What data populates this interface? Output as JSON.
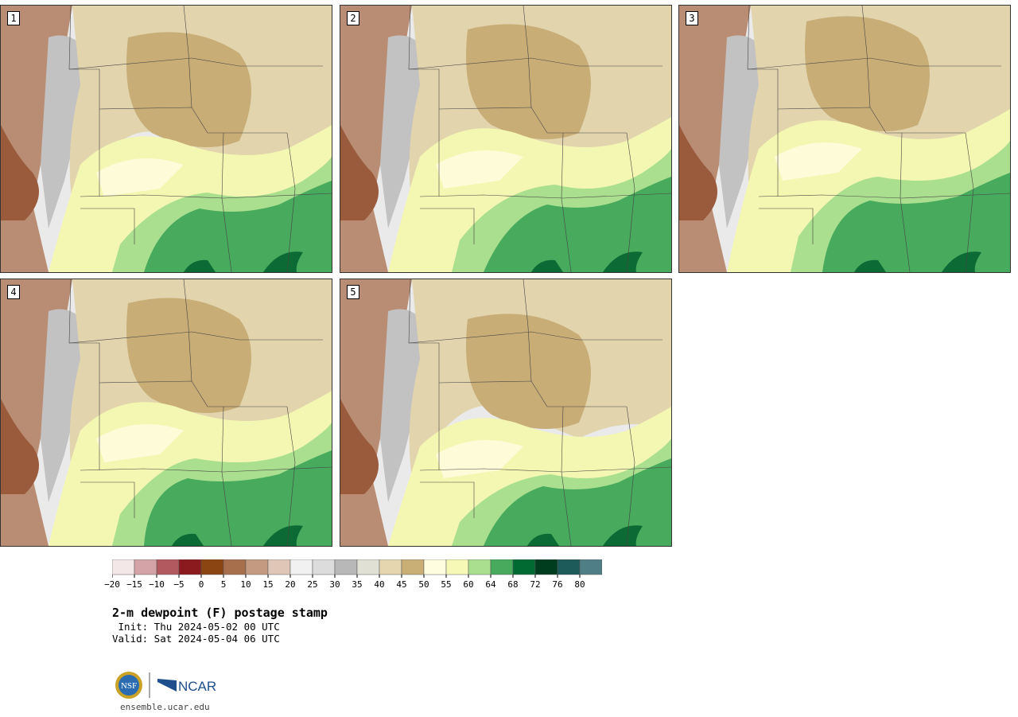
{
  "panels": [
    {
      "label": "1"
    },
    {
      "label": "2"
    },
    {
      "label": "3"
    },
    {
      "label": "4"
    },
    {
      "label": "5"
    }
  ],
  "colorbar": {
    "colors": [
      "#f3e7e8",
      "#d4a3a7",
      "#b2595f",
      "#8b1a1e",
      "#8a4513",
      "#a86f4c",
      "#c49a80",
      "#e0c6b6",
      "#f1f1f1",
      "#dcdcdc",
      "#b8b8b8",
      "#e0e0d5",
      "#e5d6b0",
      "#c9ae76",
      "#fffde0",
      "#f6f9b5",
      "#a9df8e",
      "#47aa5d",
      "#006a33",
      "#003d1f",
      "#1d5a5a",
      "#4f7e86"
    ],
    "ticks": [
      "−20",
      "−15",
      "−10",
      "−5",
      "0",
      "5",
      "10",
      "15",
      "20",
      "25",
      "30",
      "35",
      "40",
      "45",
      "50",
      "55",
      "60",
      "64",
      "68",
      "72",
      "76",
      "80"
    ]
  },
  "title": "2-m dewpoint (F) postage stamp",
  "init": " Init: Thu 2024-05-02 00 UTC",
  "valid": "Valid: Sat 2024-05-04 06 UTC",
  "logos": {
    "nsf": "NSF",
    "ncar": "NCAR"
  },
  "site": "ensemble.ucar.edu"
}
